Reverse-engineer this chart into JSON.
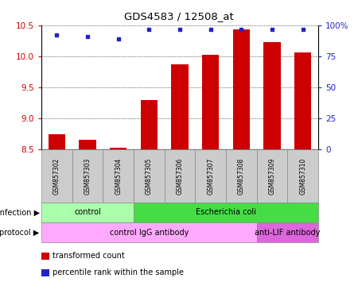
{
  "title": "GDS4583 / 12508_at",
  "samples": [
    "GSM857302",
    "GSM857303",
    "GSM857304",
    "GSM857305",
    "GSM857306",
    "GSM857307",
    "GSM857308",
    "GSM857309",
    "GSM857310"
  ],
  "bar_values": [
    8.75,
    8.65,
    8.52,
    9.3,
    9.87,
    10.02,
    10.43,
    10.23,
    10.07
  ],
  "percentile_values": [
    92,
    91,
    89,
    97,
    97,
    97,
    97,
    97,
    97
  ],
  "ylim_left": [
    8.5,
    10.5
  ],
  "ylim_right": [
    0,
    100
  ],
  "yticks_left": [
    8.5,
    9.0,
    9.5,
    10.0,
    10.5
  ],
  "yticks_right": [
    0,
    25,
    50,
    75,
    100
  ],
  "ytick_right_labels": [
    "0",
    "25",
    "50",
    "75",
    "100%"
  ],
  "bar_color": "#cc0000",
  "dot_color": "#2222cc",
  "bar_width": 0.55,
  "infection_groups": [
    {
      "label": "control",
      "start": 0,
      "end": 3,
      "color": "#aaffaa"
    },
    {
      "label": "Escherichia coli",
      "start": 3,
      "end": 9,
      "color": "#44dd44"
    }
  ],
  "protocol_groups": [
    {
      "label": "control IgG antibody",
      "start": 0,
      "end": 7,
      "color": "#ffaaff"
    },
    {
      "label": "anti-LIF antibody",
      "start": 7,
      "end": 9,
      "color": "#dd66dd"
    }
  ],
  "legend_items": [
    {
      "label": "transformed count",
      "color": "#cc0000"
    },
    {
      "label": "percentile rank within the sample",
      "color": "#2222cc"
    }
  ],
  "infection_label": "infection",
  "protocol_label": "protocol",
  "sample_box_color": "#cccccc",
  "ylabel_left_color": "#cc0000",
  "ylabel_right_color": "#2222cc",
  "background_color": "#ffffff"
}
